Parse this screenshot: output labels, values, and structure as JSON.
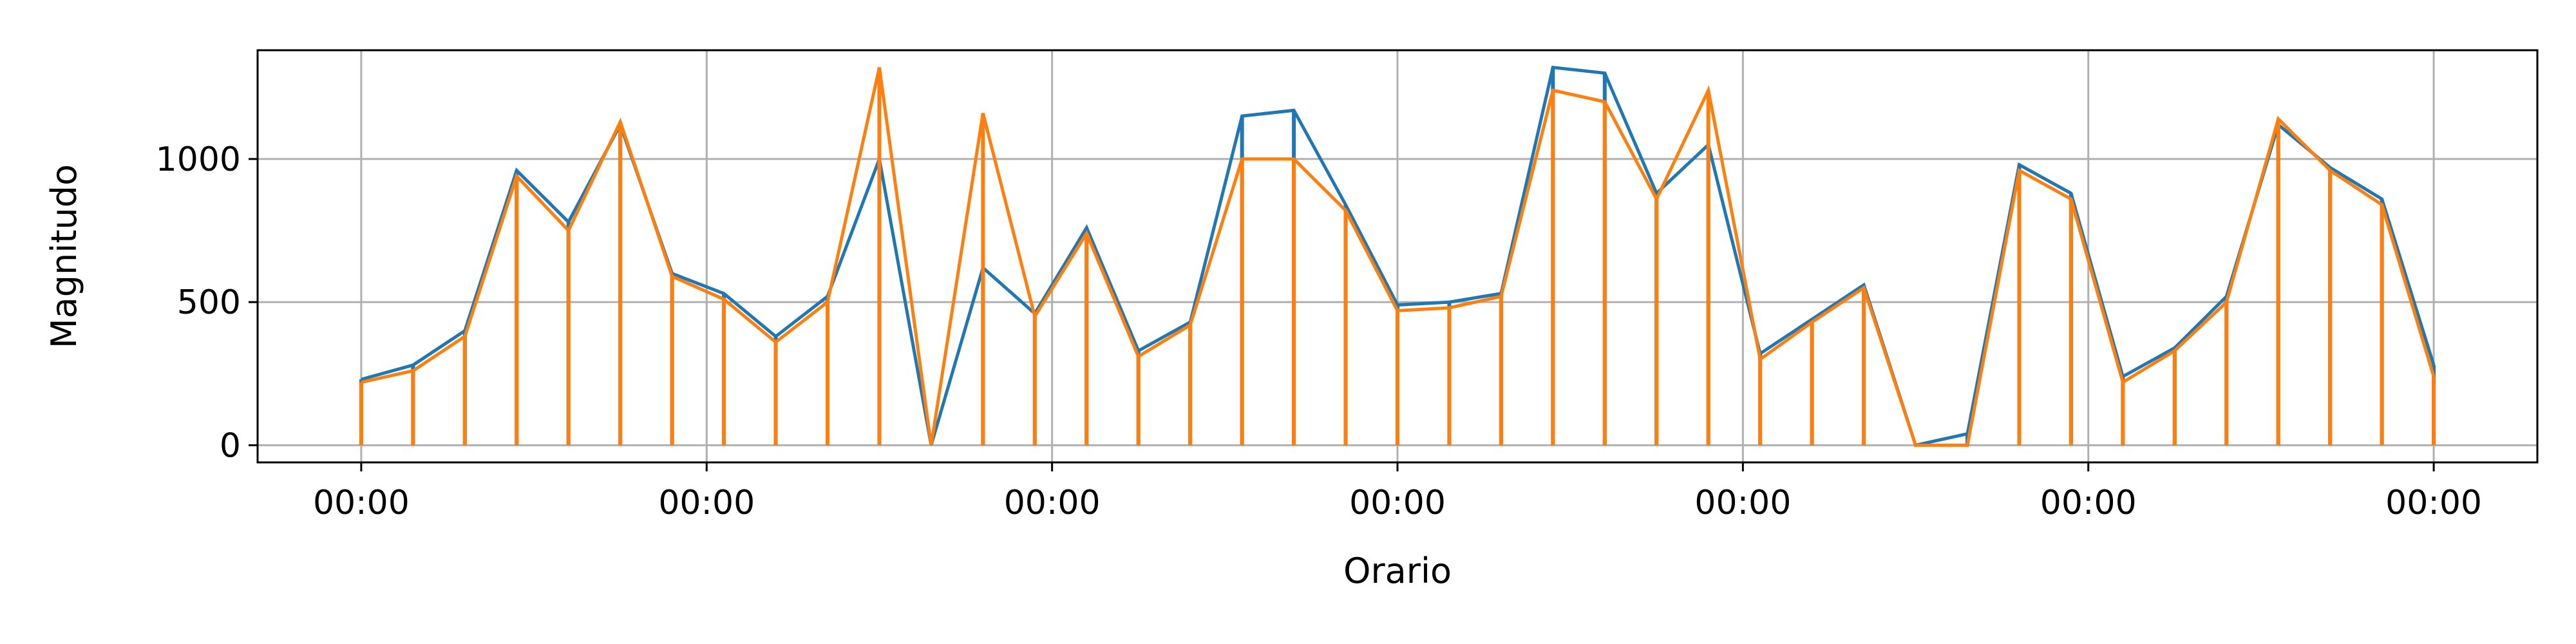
{
  "chart_data": {
    "type": "line",
    "title": "",
    "xlabel": "Orario",
    "ylabel": "Magnitudo",
    "x_tick_labels": [
      "00:00",
      "00:00",
      "00:00",
      "00:00",
      "00:00",
      "00:00",
      "00:00"
    ],
    "y_ticks": [
      0,
      500,
      1000
    ],
    "ylim": [
      -60,
      1380
    ],
    "xlim": [
      -0.3,
      6.3
    ],
    "grid": true,
    "legend": "none",
    "series": [
      {
        "color": "#1f77b4",
        "x": [
          0.0,
          0.15,
          0.3,
          0.45,
          0.6,
          0.75,
          0.9,
          1.05,
          1.2,
          1.35,
          1.5,
          1.65,
          1.8,
          1.95,
          2.1,
          2.25,
          2.4,
          2.55,
          2.7,
          2.85,
          3.0,
          3.15,
          3.3,
          3.45,
          3.6,
          3.75,
          3.9,
          4.05,
          4.2,
          4.35,
          4.5,
          4.65,
          4.8,
          4.95,
          5.1,
          5.25,
          5.4,
          5.55,
          5.7,
          5.85,
          6.0
        ],
        "values": [
          230,
          280,
          400,
          960,
          780,
          1120,
          600,
          530,
          380,
          520,
          1000,
          0,
          620,
          460,
          760,
          330,
          430,
          1150,
          1170,
          840,
          490,
          500,
          530,
          1320,
          1300,
          880,
          1050,
          320,
          440,
          560,
          0,
          40,
          980,
          880,
          240,
          340,
          520,
          1120,
          970,
          860,
          280
        ]
      },
      {
        "color": "#ff7f0e",
        "x": [
          0.0,
          0.15,
          0.3,
          0.45,
          0.6,
          0.75,
          0.9,
          1.05,
          1.2,
          1.35,
          1.5,
          1.65,
          1.8,
          1.95,
          2.1,
          2.25,
          2.4,
          2.55,
          2.7,
          2.85,
          3.0,
          3.15,
          3.3,
          3.45,
          3.6,
          3.75,
          3.9,
          4.05,
          4.2,
          4.35,
          4.5,
          4.65,
          4.8,
          4.95,
          5.1,
          5.25,
          5.4,
          5.55,
          5.7,
          5.85,
          6.0
        ],
        "values": [
          220,
          260,
          380,
          940,
          750,
          1130,
          590,
          510,
          360,
          500,
          1320,
          0,
          1160,
          450,
          740,
          310,
          420,
          1000,
          1000,
          820,
          470,
          480,
          520,
          1240,
          1200,
          860,
          1240,
          300,
          430,
          550,
          0,
          0,
          960,
          860,
          220,
          330,
          500,
          1140,
          960,
          840,
          240
        ]
      }
    ]
  }
}
